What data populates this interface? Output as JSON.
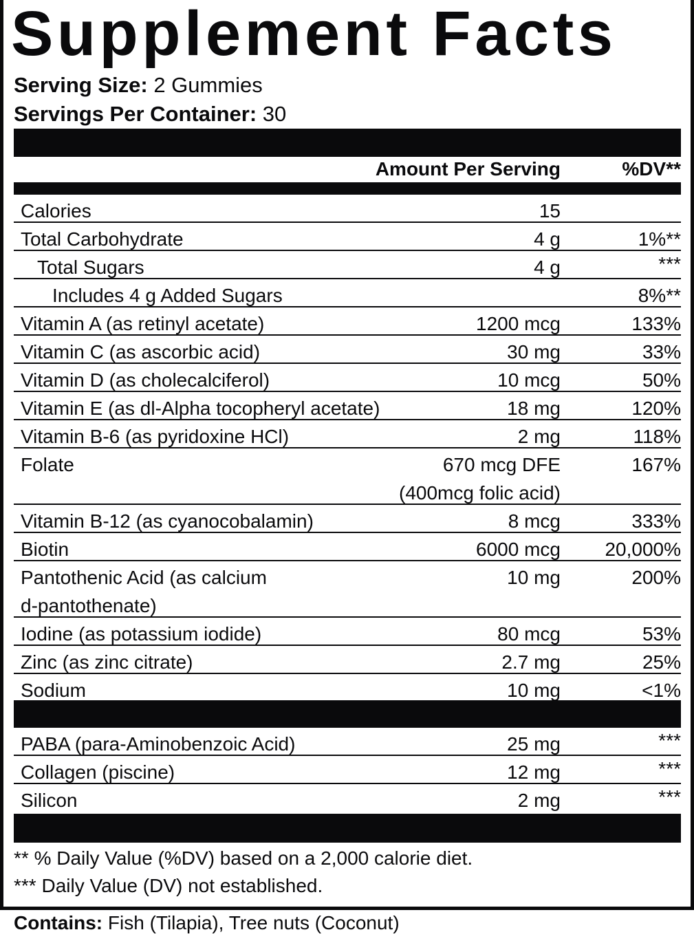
{
  "title": "Supplement Facts",
  "serving_size": {
    "label": "Serving Size:",
    "value": "2 Gummies"
  },
  "servings_per_container": {
    "label": "Servings Per Container:",
    "value": "30"
  },
  "header": {
    "amount": "Amount Per Serving",
    "dv": "%DV**"
  },
  "nutrients": [
    {
      "name": "Calories",
      "amount": "15",
      "dv": "",
      "indent": 0
    },
    {
      "name": "Total Carbohydrate",
      "amount": "4 g",
      "dv": "1%**",
      "indent": 0
    },
    {
      "name": "Total Sugars",
      "amount": "4 g",
      "dv": "***",
      "indent": 1
    },
    {
      "name": "Includes 4 g Added Sugars",
      "amount": "",
      "dv": "8%**",
      "indent": 2
    },
    {
      "name": "Vitamin A (as retinyl acetate)",
      "amount": "1200 mcg",
      "dv": "133%",
      "indent": 0
    },
    {
      "name": "Vitamin C (as ascorbic acid)",
      "amount": "30 mg",
      "dv": "33%",
      "indent": 0
    },
    {
      "name": "Vitamin D (as cholecalciferol)",
      "amount": "10 mcg",
      "dv": "50%",
      "indent": 0
    },
    {
      "name": "Vitamin E (as dl-Alpha tocopheryl acetate)",
      "amount": "18 mg",
      "dv": "120%",
      "indent": 0
    },
    {
      "name": "Vitamin B-6 (as pyridoxine HCl)",
      "amount": "2 mg",
      "dv": "118%",
      "indent": 0
    },
    {
      "name": "Folate",
      "amount": "670 mcg DFE\n(400mcg folic acid)",
      "dv": "167%",
      "indent": 0,
      "double": true
    },
    {
      "name": "Vitamin B-12 (as cyanocobalamin)",
      "amount": "8 mcg",
      "dv": "333%",
      "indent": 0
    },
    {
      "name": "Biotin",
      "amount": "6000 mcg",
      "dv": "20,000%",
      "indent": 0
    },
    {
      "name": "Pantothenic Acid (as calcium\nd-pantothenate)",
      "amount": "10 mg",
      "dv": "200%",
      "indent": 0,
      "double": true
    },
    {
      "name": "Iodine (as potassium iodide)",
      "amount": "80 mcg",
      "dv": "53%",
      "indent": 0
    },
    {
      "name": "Zinc (as zinc citrate)",
      "amount": "2.7 mg",
      "dv": "25%",
      "indent": 0
    },
    {
      "name": "Sodium",
      "amount": "10 mg",
      "dv": "<1%",
      "indent": 0
    }
  ],
  "other_ingredients": [
    {
      "name": "PABA (para-Aminobenzoic Acid)",
      "amount": "25 mg",
      "dv": "***"
    },
    {
      "name": "Collagen (piscine)",
      "amount": "12 mg",
      "dv": "***"
    },
    {
      "name": "Silicon",
      "amount": "2 mg",
      "dv": "***"
    }
  ],
  "footnotes": [
    "** % Daily Value (%DV) based on a 2,000 calorie diet.",
    "*** Daily Value (DV) not established."
  ],
  "contains": {
    "label": "Contains:",
    "value": "Fish (Tilapia), Tree nuts (Coconut)"
  }
}
